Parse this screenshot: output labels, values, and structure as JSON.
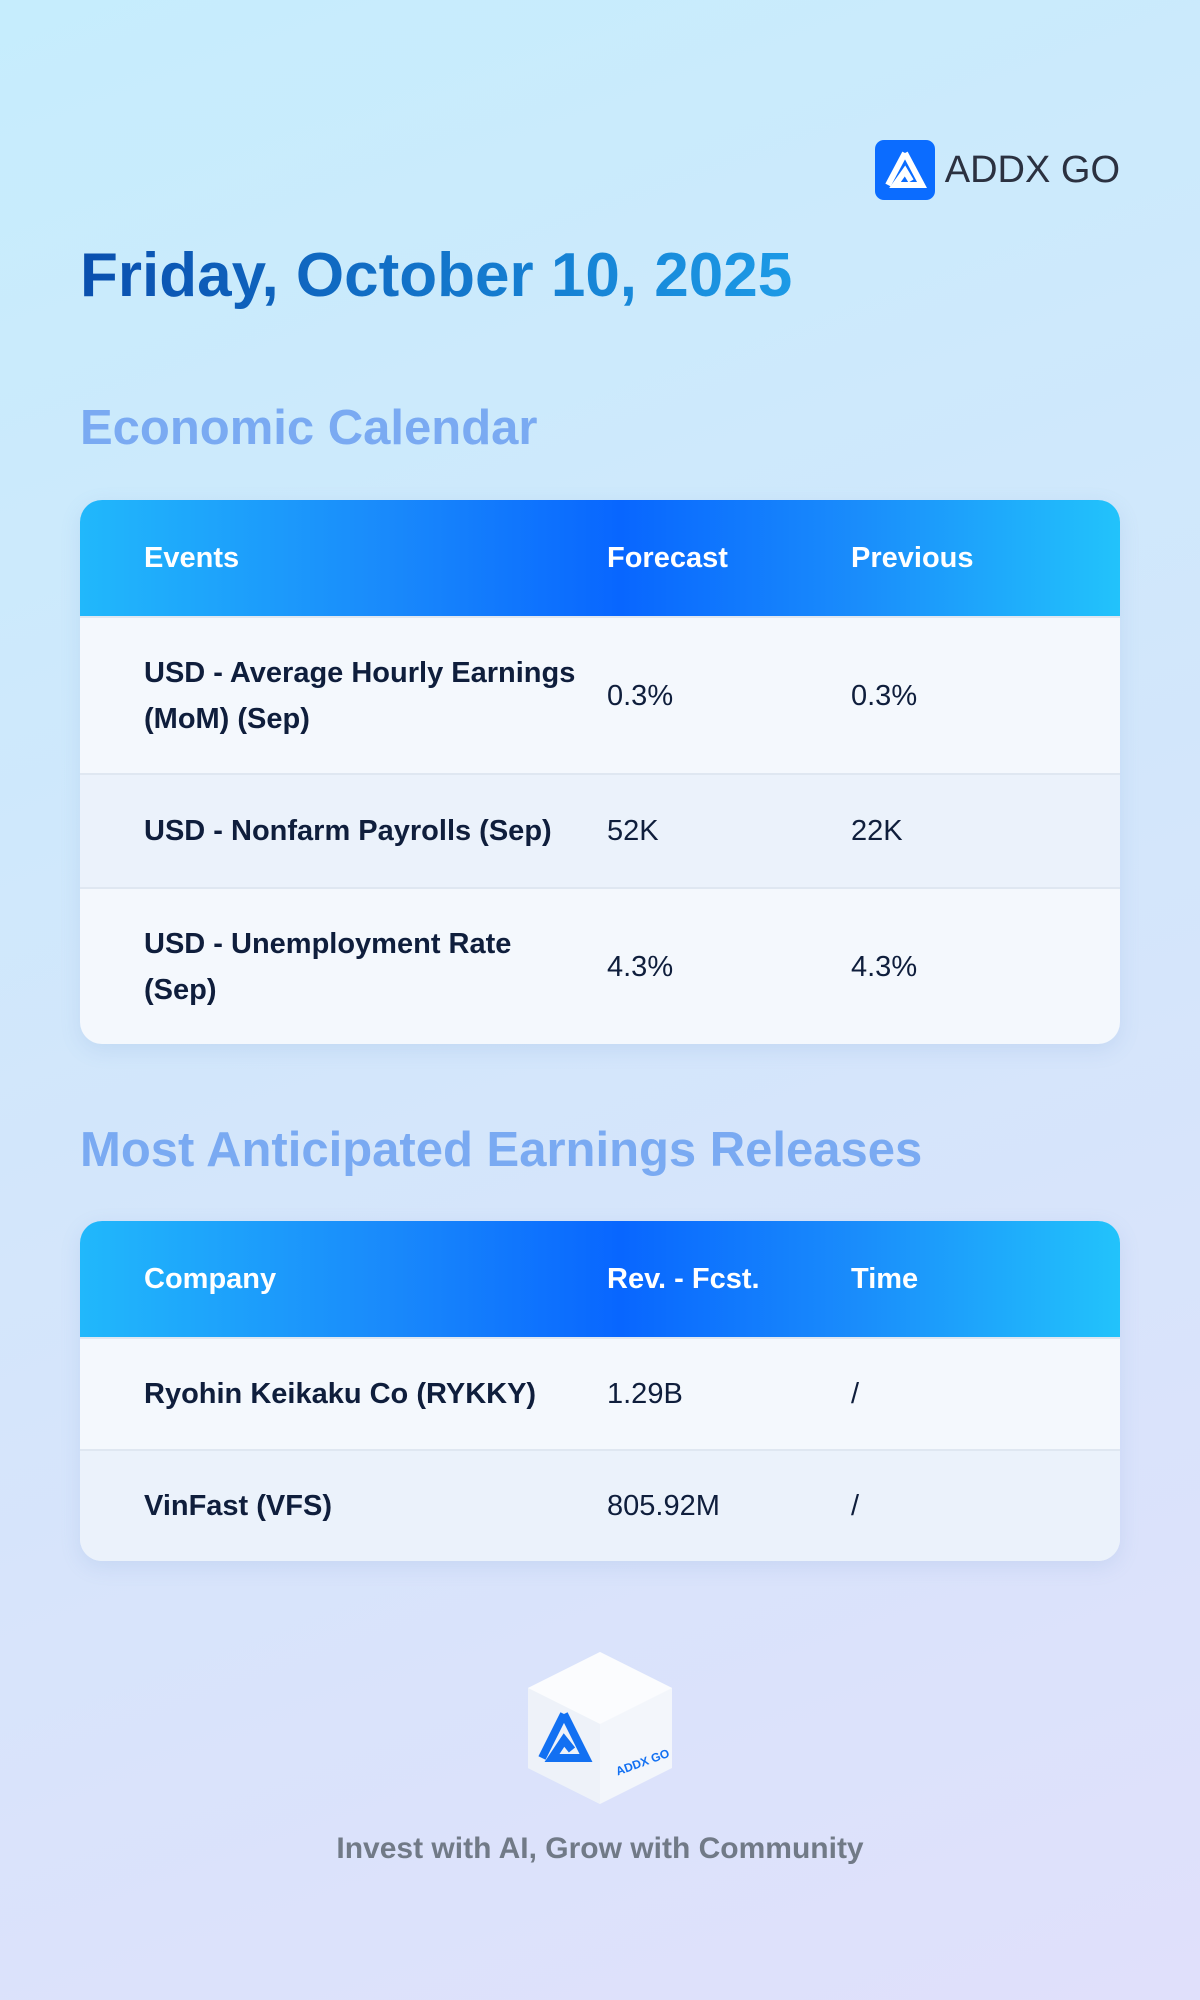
{
  "header": {
    "brand": "ADDX GO"
  },
  "date": "Friday, October 10, 2025",
  "economic_calendar": {
    "title": "Economic Calendar",
    "columns": [
      "Events",
      "Forecast",
      "Previous"
    ],
    "rows": [
      [
        "USD - Average Hourly Earnings (MoM) (Sep)",
        "0.3%",
        "0.3%"
      ],
      [
        "USD - Nonfarm Payrolls (Sep)",
        "52K",
        "22K"
      ],
      [
        "USD - Unemployment Rate (Sep)",
        "4.3%",
        "4.3%"
      ]
    ]
  },
  "earnings": {
    "title": "Most Anticipated Earnings Releases",
    "columns": [
      "Company",
      "Rev. - Fcst.",
      "Time"
    ],
    "rows": [
      [
        "Ryohin Keikaku Co (RYKKY)",
        "1.29B",
        "/"
      ],
      [
        "VinFast (VFS)",
        "805.92M",
        "/"
      ]
    ]
  },
  "footer": {
    "logo_text": "ADDX GO",
    "tagline": "Invest with AI, Grow with Community"
  }
}
